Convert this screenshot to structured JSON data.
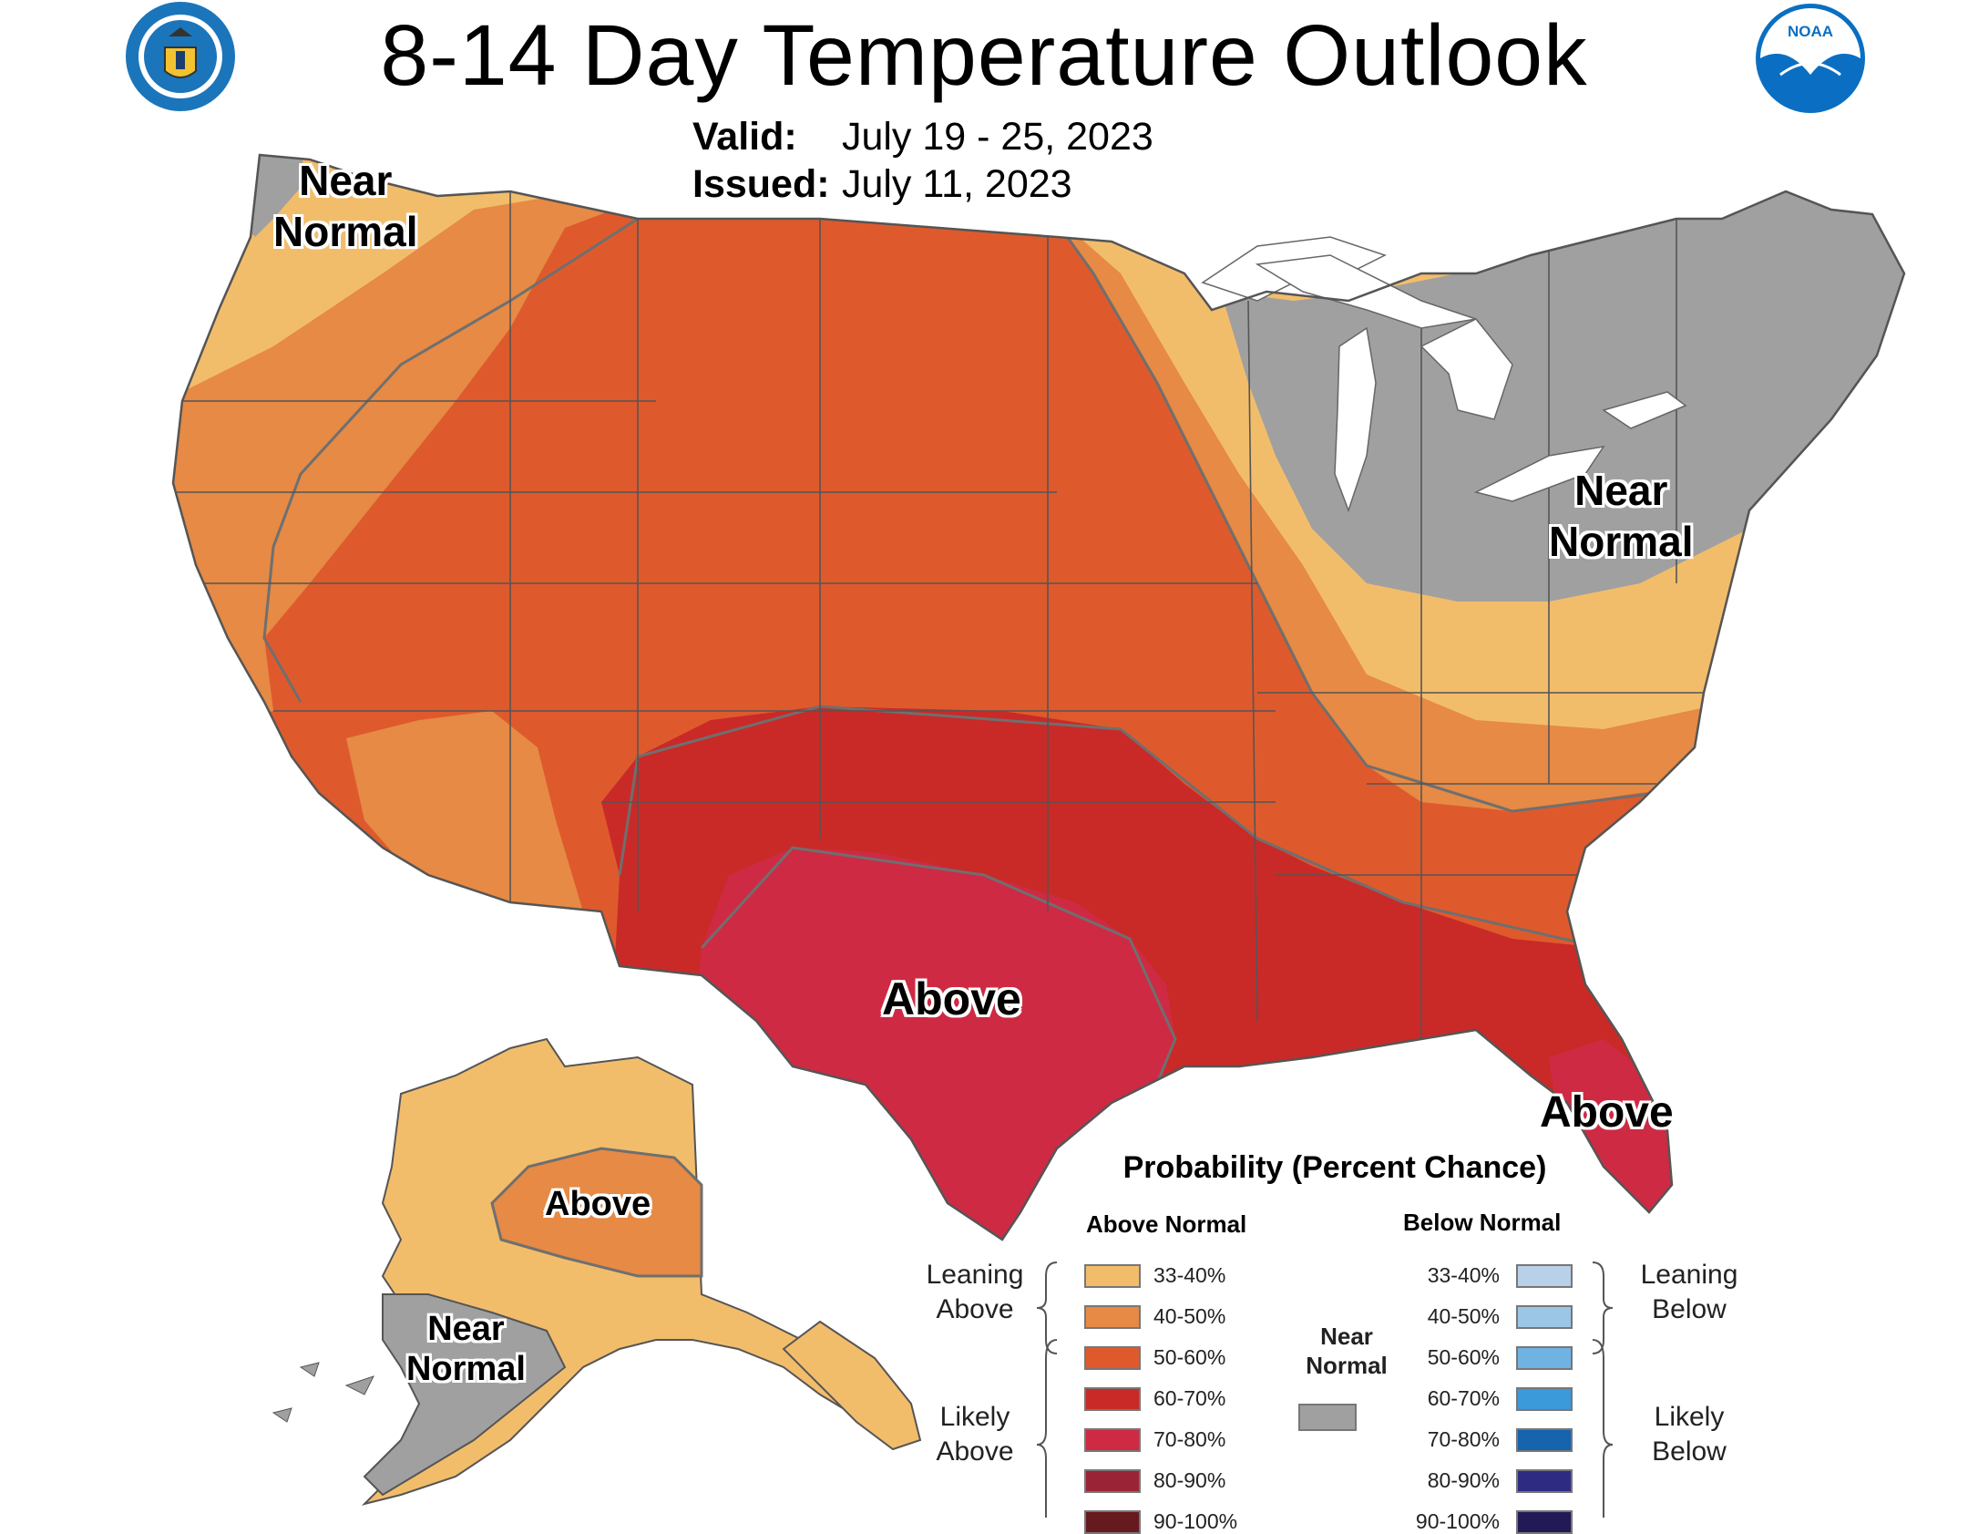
{
  "title": "8-14 Day Temperature Outlook",
  "valid_key": "Valid:",
  "valid_value": "July 19 - 25, 2023",
  "issued_key": "Issued:",
  "issued_value": "July 11, 2023",
  "logos": {
    "left": "doc-seal",
    "right": "noaa-logo",
    "noaa_text": "NOAA"
  },
  "colors": {
    "above_33_40": "#F2BD6B",
    "above_40_50": "#E68A45",
    "above_50_60": "#DE5A2D",
    "above_60_70": "#C92A27",
    "above_70_80": "#CE2A44",
    "above_80_90": "#9A2436",
    "above_90_100": "#66191F",
    "near_normal": "#A0A0A0",
    "below_33_40": "#B8D0E8",
    "below_40_50": "#9CC6E6",
    "below_50_60": "#6FB3E2",
    "below_60_70": "#3A9ADA",
    "below_70_80": "#1663AE",
    "below_80_90": "#2E2C82",
    "below_90_100": "#211A56",
    "lakes": "#ffffff",
    "borders": "#555555"
  },
  "map_labels": {
    "nw_near_normal": "Near\nNormal",
    "ne_near_normal": "Near\nNormal",
    "texas_above": "Above",
    "florida_above": "Above",
    "alaska_above": "Above",
    "alaska_near_normal": "Near\nNormal"
  },
  "legend": {
    "title": "Probability (Percent Chance)",
    "above_header": "Above Normal",
    "below_header": "Below Normal",
    "near_header": "Near\nNormal",
    "leaning_above": "Leaning\nAbove",
    "likely_above": "Likely\nAbove",
    "leaning_below": "Leaning\nBelow",
    "likely_below": "Likely\nBelow",
    "above_items": [
      {
        "range": "33-40%",
        "color": "#F2BD6B"
      },
      {
        "range": "40-50%",
        "color": "#E68A45"
      },
      {
        "range": "50-60%",
        "color": "#DE5A2D"
      },
      {
        "range": "60-70%",
        "color": "#C92A27"
      },
      {
        "range": "70-80%",
        "color": "#CE2A44"
      },
      {
        "range": "80-90%",
        "color": "#9A2436"
      },
      {
        "range": "90-100%",
        "color": "#66191F"
      }
    ],
    "below_items": [
      {
        "range": "33-40%",
        "color": "#B8D0E8"
      },
      {
        "range": "40-50%",
        "color": "#9CC6E6"
      },
      {
        "range": "50-60%",
        "color": "#6FB3E2"
      },
      {
        "range": "60-70%",
        "color": "#3A9ADA"
      },
      {
        "range": "70-80%",
        "color": "#1663AE"
      },
      {
        "range": "80-90%",
        "color": "#2E2C82"
      },
      {
        "range": "90-100%",
        "color": "#211A56"
      }
    ],
    "near_color": "#A0A0A0"
  }
}
